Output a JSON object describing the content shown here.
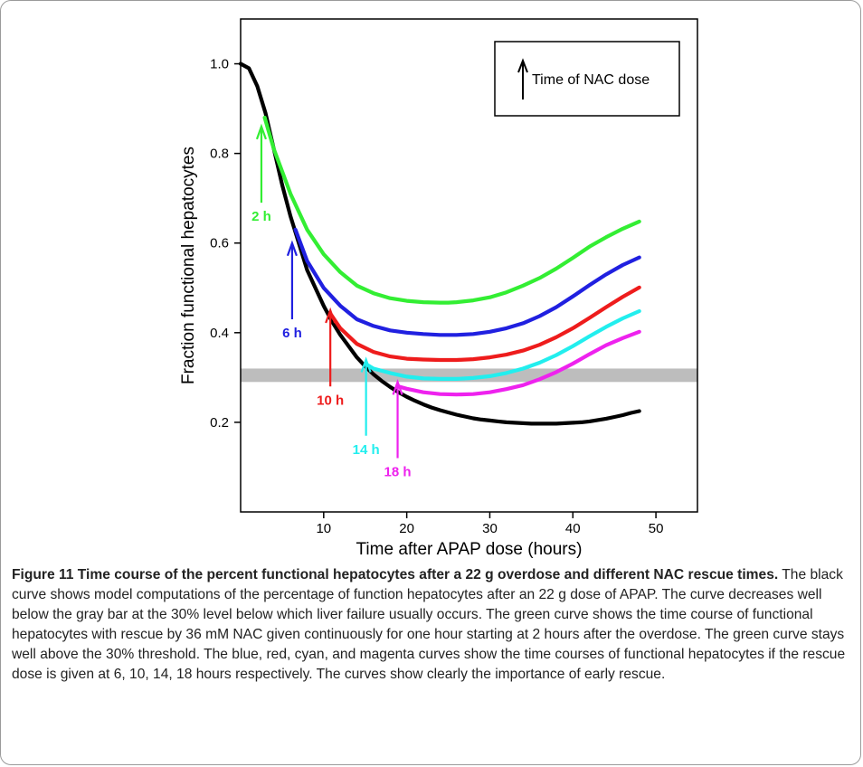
{
  "chart_data": {
    "type": "line",
    "xlabel": "Time after APAP dose (hours)",
    "ylabel": "Fraction functional hepatocytes",
    "xlim": [
      0,
      55
    ],
    "ylim": [
      0,
      1.1
    ],
    "xticks": [
      10,
      20,
      30,
      40,
      50
    ],
    "yticks": [
      0.2,
      0.4,
      0.6,
      0.8,
      1.0
    ],
    "ytick_labels": [
      "0.2",
      "0.4",
      "0.6",
      "0.8",
      "1.0"
    ],
    "grid": false,
    "legend": {
      "placement": "top-right",
      "label": "Time of NAC dose",
      "symbol": "up-arrow"
    },
    "threshold_band": {
      "from": 0.29,
      "to": 0.32,
      "color": "#bdbdbd"
    },
    "series": [
      {
        "color": "#000000",
        "x": [
          0,
          1,
          2,
          3,
          4,
          5,
          6,
          7,
          8,
          9,
          10,
          11,
          12,
          13,
          14,
          15,
          16,
          17,
          18,
          19,
          20,
          21,
          22,
          23,
          24,
          25,
          26,
          27,
          28,
          29,
          30,
          31,
          32,
          33,
          34,
          35,
          36,
          37,
          38,
          39,
          40,
          41,
          42,
          43,
          44,
          45,
          46,
          47,
          48
        ],
        "y": [
          1.0,
          0.99,
          0.95,
          0.89,
          0.81,
          0.73,
          0.66,
          0.6,
          0.54,
          0.5,
          0.46,
          0.425,
          0.395,
          0.37,
          0.345,
          0.325,
          0.307,
          0.292,
          0.279,
          0.267,
          0.257,
          0.248,
          0.24,
          0.233,
          0.227,
          0.222,
          0.217,
          0.213,
          0.209,
          0.206,
          0.204,
          0.202,
          0.2,
          0.199,
          0.198,
          0.197,
          0.197,
          0.197,
          0.197,
          0.198,
          0.199,
          0.2,
          0.202,
          0.205,
          0.208,
          0.212,
          0.216,
          0.221,
          0.225
        ]
      },
      {
        "color": "#33ee33",
        "x": [
          2.9,
          4,
          6,
          8,
          10,
          12,
          14,
          16,
          18,
          20,
          22,
          24,
          25,
          26,
          28,
          30,
          32,
          34,
          36,
          38,
          40,
          42,
          44,
          46,
          48
        ],
        "y": [
          0.88,
          0.81,
          0.71,
          0.63,
          0.575,
          0.535,
          0.505,
          0.488,
          0.477,
          0.471,
          0.468,
          0.467,
          0.467,
          0.468,
          0.472,
          0.479,
          0.49,
          0.505,
          0.522,
          0.543,
          0.567,
          0.592,
          0.613,
          0.632,
          0.648
        ]
      },
      {
        "color": "#2020e0",
        "x": [
          6.6,
          8,
          10,
          12,
          14,
          16,
          18,
          20,
          22,
          24,
          25,
          26,
          28,
          30,
          32,
          34,
          36,
          38,
          40,
          42,
          44,
          46,
          48
        ],
        "y": [
          0.63,
          0.56,
          0.5,
          0.46,
          0.43,
          0.415,
          0.405,
          0.4,
          0.397,
          0.395,
          0.395,
          0.395,
          0.397,
          0.402,
          0.41,
          0.421,
          0.437,
          0.457,
          0.481,
          0.506,
          0.53,
          0.551,
          0.568
        ]
      },
      {
        "color": "#ee1c1c",
        "x": [
          10.9,
          12,
          14,
          16,
          18,
          20,
          22,
          24,
          26,
          28,
          30,
          32,
          34,
          36,
          38,
          40,
          42,
          44,
          46,
          48
        ],
        "y": [
          0.44,
          0.41,
          0.375,
          0.357,
          0.347,
          0.342,
          0.34,
          0.339,
          0.339,
          0.341,
          0.345,
          0.351,
          0.36,
          0.373,
          0.39,
          0.41,
          0.433,
          0.457,
          0.48,
          0.501
        ]
      },
      {
        "color": "#22eeee",
        "x": [
          15.1,
          16,
          18,
          20,
          22,
          24,
          26,
          28,
          30,
          32,
          34,
          36,
          38,
          40,
          42,
          44,
          46,
          48
        ],
        "y": [
          0.33,
          0.32,
          0.31,
          0.302,
          0.298,
          0.297,
          0.297,
          0.299,
          0.303,
          0.31,
          0.32,
          0.333,
          0.35,
          0.37,
          0.392,
          0.413,
          0.432,
          0.448
        ]
      },
      {
        "color": "#ee22ee",
        "x": [
          19,
          20,
          22,
          24,
          26,
          28,
          30,
          32,
          34,
          36,
          38,
          40,
          42,
          44,
          46,
          48
        ],
        "y": [
          0.28,
          0.275,
          0.267,
          0.263,
          0.262,
          0.263,
          0.267,
          0.274,
          0.283,
          0.296,
          0.312,
          0.331,
          0.352,
          0.372,
          0.388,
          0.402
        ]
      }
    ],
    "annotations": [
      {
        "text": "2 h",
        "color": "#33ee33",
        "tip_x": 2.5,
        "tip_y": 0.86,
        "base_y": 0.69
      },
      {
        "text": "6 h",
        "color": "#2020e0",
        "tip_x": 6.2,
        "tip_y": 0.6,
        "base_y": 0.43
      },
      {
        "text": "10 h",
        "color": "#ee1c1c",
        "tip_x": 10.8,
        "tip_y": 0.45,
        "base_y": 0.28
      },
      {
        "text": "14 h",
        "color": "#22eeee",
        "tip_x": 15.1,
        "tip_y": 0.34,
        "base_y": 0.17
      },
      {
        "text": "18 h",
        "color": "#ee22ee",
        "tip_x": 18.9,
        "tip_y": 0.29,
        "base_y": 0.12
      }
    ]
  },
  "caption": {
    "title": "Figure 11 Time course of the percent functional hepatocytes after a 22 g overdose and different NAC rescue times.",
    "body": " The black curve shows model computations of the percentage of function hepatocytes after an 22 g dose of APAP. The curve decreases well below the gray bar at the 30% level below which liver failure usually occurs. The green curve shows the time course of functional hepatocytes with rescue by 36 mM NAC given continuously for one hour starting at 2 hours after the overdose. The green curve stays well above the 30% threshold. The blue, red, cyan, and magenta curves show the time courses of functional hepatocytes if the rescue dose is given at 6, 10, 14, 18 hours respectively. The curves show clearly the importance of early rescue."
  }
}
